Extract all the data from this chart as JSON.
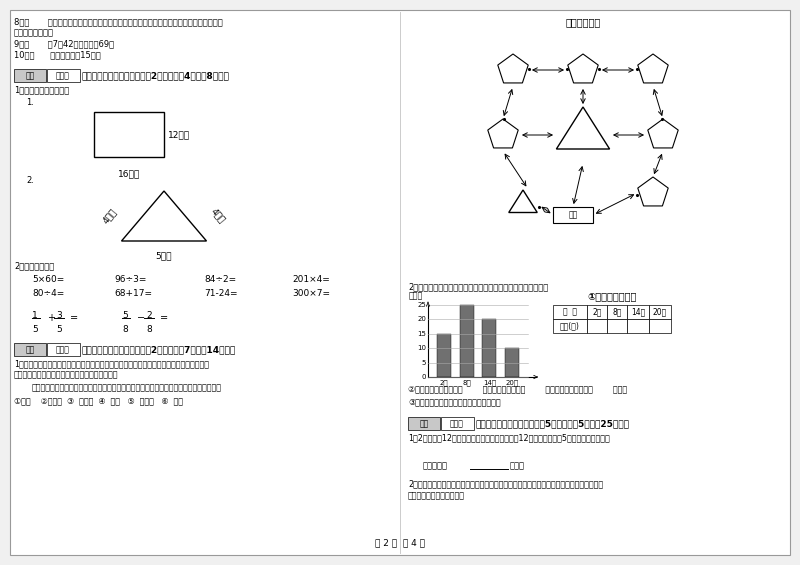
{
  "page_label": "第 2 页  共 4 页",
  "bg_color": "#f0f0f0",
  "content_bg": "#ffffff",
  "left_column": {
    "items": [
      "8．（       ）用同一条铁丝先围成一个最大的正方形，再围成一个最大的长方形，长方形和",
      "方形的周长相等。",
      "9．（       ）7个42相加的和是69。",
      "10．（      ）李老师身高15米。"
    ],
    "section4": "四、看清题目，细心计算（共2小题，每题4分，共8分）。",
    "section4_sub1": "1．求下面图形的周长。",
    "sub1_label": "1.",
    "rect_label1": "12厘米",
    "rect_label2": "16厘米",
    "sub2_label": "2.",
    "tri_left": "4分米",
    "tri_right": "4分米",
    "tri_bottom": "5分米",
    "section2_title": "2．直接写得数。",
    "calc_row1": [
      "5×60=",
      "96÷3=",
      "84÷2=",
      "201×4="
    ],
    "calc_row2": [
      "80÷4=",
      "68+17=",
      "71-24=",
      "300×7="
    ],
    "section5_title": "五、认真思考，综合能力（共2小题，每题7分，共14分）。",
    "section5_text1a": "1．走进动物园大门，正北面是狮子山和熊猫馆，狮子山的东侧是飞禽馆，西侧是猴园，大象",
    "section5_text1b": "馆和鱼馆的场地分别在动物园的东北角和西北角。",
    "section5_text2": "根据小强的描述，请你把这些动物场馆所在的位置，在动物园的导游图上用序号表示出来。",
    "section5_labels": "①狮山    ②熊猫馆  ③  飞禽馆  ④  猴园   ⑤  大象馆   ⑥  鱼馆"
  },
  "right_column": {
    "zoo_map_title": "动物园导游图",
    "weather_intro": "2．下面是气温自测仪上记录的某天四个不同时间的气温情况：",
    "chart_ylabel": "（度）",
    "chart_times": [
      "2时",
      "8时",
      "14时",
      "20时"
    ],
    "chart_values": [
      15,
      25,
      20,
      10
    ],
    "chart_yticks": [
      0,
      5,
      10,
      15,
      20,
      25
    ],
    "table_title": "①根据统计图填表",
    "table_headers": [
      "时  间",
      "2时",
      "8时",
      "14时",
      "20时"
    ],
    "table_row": [
      "气温(度)",
      "",
      "",
      "",
      ""
    ],
    "weather_q2": "②这一天的最高气温是（        ）度，最低气温是（        ）度，平均气温大约（        ）度。",
    "weather_q3": "③实际算一算，这天的平均气温是多少度？",
    "section6_title": "六、活用知识，解决问题（共5小题，每题5分，共25分）。",
    "section6_q1": "1．2位老师带12位学生去游乐园玩，成人票每张12元，学生票每张5元，一共要多少钱？",
    "section6_blank": "答：一共要        元钱。",
    "section6_q2a": "2．王大伯家有一块菜地，他把其中的七分之二种白菜，七分之三种萝卜，种白菜和萝卜的地",
    "section6_q2b": "一共是这块地的几分之几？"
  },
  "score_box_gray": "#c8c8c8",
  "bar_color": "#707070",
  "grid_color": "#aaaaaa"
}
